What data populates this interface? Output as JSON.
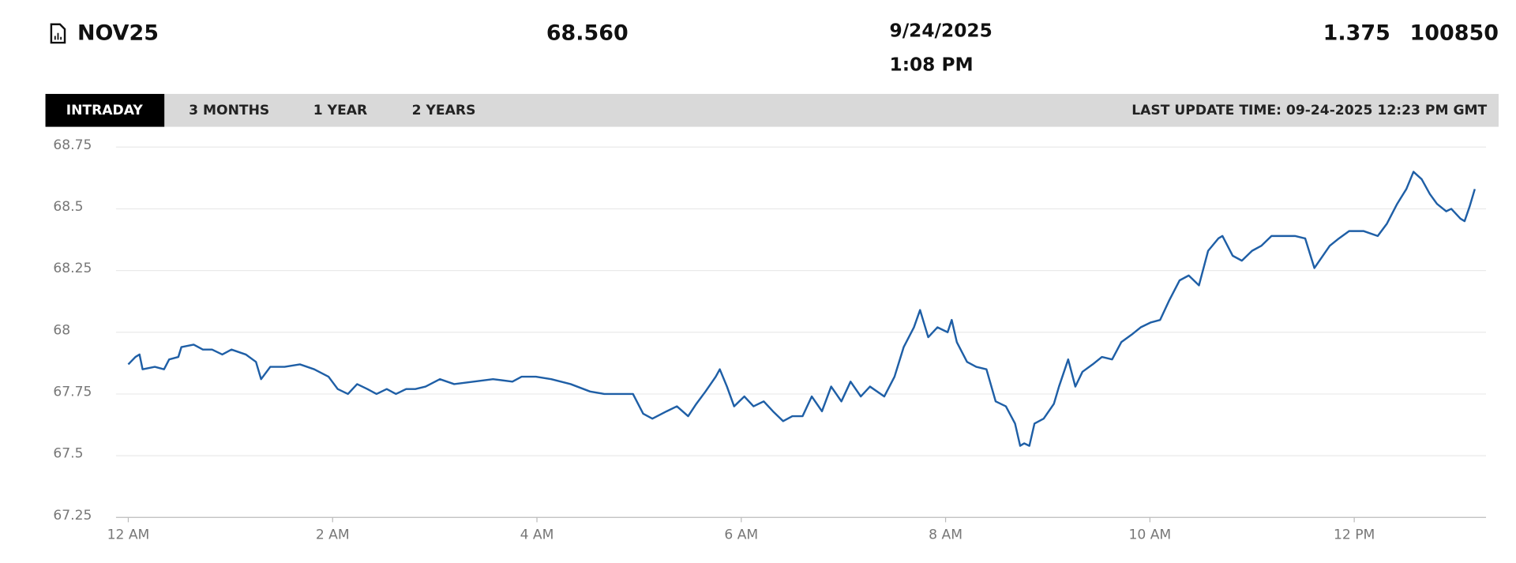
{
  "header": {
    "symbol": "NOV25",
    "price": "68.560",
    "date": "9/24/2025",
    "time": "1:08 PM",
    "change": "1.375",
    "volume": "100850"
  },
  "tabs": [
    "INTRADAY",
    "3 MONTHS",
    "1 YEAR",
    "2 YEARS"
  ],
  "last_update": "LAST UPDATE TIME: 09-24-2025 12:23 PM GMT",
  "chart_data": {
    "type": "line",
    "color": "#1f5fa6",
    "grid": true,
    "xlim": [
      -0.12,
      13.29
    ],
    "ylim": [
      67.25,
      68.75
    ],
    "xticks": [
      {
        "value": 0,
        "label": "12 AM"
      },
      {
        "value": 2,
        "label": "2 AM"
      },
      {
        "value": 4,
        "label": "4 AM"
      },
      {
        "value": 6,
        "label": "6 AM"
      },
      {
        "value": 8,
        "label": "8 AM"
      },
      {
        "value": 10,
        "label": "10 AM"
      },
      {
        "value": 12,
        "label": "12 PM"
      }
    ],
    "yticks": [
      67.25,
      67.5,
      67.75,
      68,
      68.25,
      68.5,
      68.75
    ],
    "x": [
      0,
      0.07,
      0.11,
      0.14,
      0.26,
      0.35,
      0.4,
      0.49,
      0.52,
      0.64,
      0.73,
      0.82,
      0.92,
      1.01,
      1.15,
      1.25,
      1.3,
      1.39,
      1.53,
      1.68,
      1.82,
      1.96,
      2.05,
      2.15,
      2.24,
      2.34,
      2.43,
      2.53,
      2.62,
      2.72,
      2.81,
      2.91,
      3.05,
      3.19,
      3.38,
      3.57,
      3.76,
      3.85,
      3.99,
      4.14,
      4.33,
      4.52,
      4.66,
      4.8,
      4.94,
      5.04,
      5.13,
      5.27,
      5.37,
      5.48,
      5.56,
      5.65,
      5.75,
      5.79,
      5.86,
      5.93,
      6.03,
      6.12,
      6.22,
      6.31,
      6.41,
      6.5,
      6.6,
      6.69,
      6.79,
      6.88,
      6.98,
      7.07,
      7.17,
      7.26,
      7.4,
      7.5,
      7.59,
      7.69,
      7.75,
      7.83,
      7.92,
      8.02,
      8.06,
      8.11,
      8.21,
      8.3,
      8.4,
      8.49,
      8.59,
      8.68,
      8.73,
      8.77,
      8.82,
      8.87,
      8.96,
      9.06,
      9.11,
      9.2,
      9.27,
      9.34,
      9.44,
      9.53,
      9.63,
      9.72,
      9.82,
      9.91,
      10.01,
      10.1,
      10.19,
      10.29,
      10.38,
      10.48,
      10.57,
      10.67,
      10.71,
      10.81,
      10.9,
      11.0,
      11.09,
      11.19,
      11.28,
      11.42,
      11.52,
      11.61,
      11.66,
      11.76,
      11.85,
      11.95,
      12.09,
      12.23,
      12.32,
      12.42,
      12.51,
      12.58,
      12.66,
      12.74,
      12.81,
      12.9,
      12.95,
      13.04,
      13.08,
      13.13,
      13.18
    ],
    "values": [
      67.87,
      67.9,
      67.91,
      67.85,
      67.86,
      67.85,
      67.89,
      67.9,
      67.94,
      67.95,
      67.93,
      67.93,
      67.91,
      67.93,
      67.91,
      67.88,
      67.81,
      67.86,
      67.86,
      67.87,
      67.85,
      67.82,
      67.77,
      67.75,
      67.79,
      67.77,
      67.75,
      67.77,
      67.75,
      67.77,
      67.77,
      67.78,
      67.81,
      67.79,
      67.8,
      67.81,
      67.8,
      67.82,
      67.82,
      67.81,
      67.79,
      67.76,
      67.75,
      67.75,
      67.75,
      67.67,
      67.65,
      67.68,
      67.7,
      67.66,
      67.71,
      67.76,
      67.82,
      67.85,
      67.78,
      67.7,
      67.74,
      67.7,
      67.72,
      67.68,
      67.64,
      67.66,
      67.66,
      67.74,
      67.68,
      67.78,
      67.72,
      67.8,
      67.74,
      67.78,
      67.74,
      67.82,
      67.94,
      68.02,
      68.09,
      67.98,
      68.02,
      68.0,
      68.05,
      67.96,
      67.88,
      67.86,
      67.85,
      67.72,
      67.7,
      67.63,
      67.54,
      67.55,
      67.54,
      67.63,
      67.65,
      67.71,
      67.78,
      67.89,
      67.78,
      67.84,
      67.87,
      67.9,
      67.89,
      67.96,
      67.99,
      68.02,
      68.04,
      68.05,
      68.13,
      68.21,
      68.23,
      68.19,
      68.33,
      68.38,
      68.39,
      68.31,
      68.29,
      68.33,
      68.35,
      68.39,
      68.39,
      68.39,
      68.38,
      68.26,
      68.29,
      68.35,
      68.38,
      68.41,
      68.41,
      68.39,
      68.44,
      68.52,
      68.58,
      68.65,
      68.62,
      68.56,
      68.52,
      68.49,
      68.5,
      68.46,
      68.45,
      68.51,
      68.58
    ]
  }
}
